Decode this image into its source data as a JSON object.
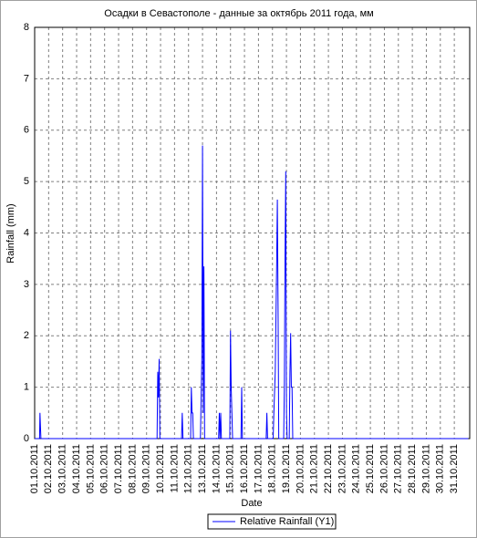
{
  "chart_data": {
    "type": "line",
    "title": "Осадки в Севастополе - данные за октябрь 2011 года, мм",
    "x_label": "Date",
    "y_label": "Rainfall (mm)",
    "x": [
      1,
      1.35,
      1.38,
      1.42,
      1.45,
      9.75,
      9.8,
      9.85,
      9.9,
      9.95,
      11.5,
      11.55,
      11.6,
      12.15,
      12.2,
      12.25,
      12.3,
      12.35,
      12.85,
      12.9,
      12.95,
      13.0,
      13.05,
      13.1,
      13.15,
      14.15,
      14.2,
      14.25,
      14.3,
      14.35,
      14.95,
      15.0,
      15.05,
      15.1,
      15.15,
      15.75,
      15.8,
      15.85,
      17.55,
      17.6,
      17.65,
      18.05,
      18.1,
      18.2,
      18.3,
      18.35,
      18.4,
      18.45,
      18.8,
      18.85,
      18.9,
      18.95,
      19.0,
      19.05,
      19.2,
      19.25,
      19.3,
      19.35,
      19.4,
      19.45,
      32
    ],
    "series": [
      {
        "name": "Relative Rainfall (Y1)",
        "color": "#0000ff",
        "values": [
          0,
          0,
          0.5,
          0.2,
          0,
          0,
          1.3,
          0.8,
          1.55,
          0,
          0,
          0.5,
          0,
          0,
          1.0,
          0.5,
          0.5,
          0,
          0,
          0.8,
          1.55,
          5.7,
          0.5,
          3.35,
          0,
          0,
          0.5,
          0,
          0.5,
          0,
          0,
          2.1,
          1.0,
          0.5,
          0,
          0,
          1.0,
          0,
          0,
          0.5,
          0,
          0,
          0.5,
          1.3,
          3.4,
          4.65,
          2.6,
          0,
          0,
          1.0,
          3.6,
          5.2,
          0.5,
          0,
          0,
          1.3,
          2.05,
          1.0,
          1.0,
          0,
          0
        ]
      }
    ],
    "xlim": [
      1,
      32.1
    ],
    "ylim": [
      0,
      8
    ],
    "yticks": [
      0,
      1,
      2,
      3,
      4,
      5,
      6,
      7,
      8
    ],
    "xticks": [
      {
        "value": 1,
        "label": "01.10.2011"
      },
      {
        "value": 2,
        "label": "02.10.2011"
      },
      {
        "value": 3,
        "label": "03.10.2011"
      },
      {
        "value": 4,
        "label": "04.10.2011"
      },
      {
        "value": 5,
        "label": "05.10.2011"
      },
      {
        "value": 6,
        "label": "06.10.2011"
      },
      {
        "value": 7,
        "label": "07.10.2011"
      },
      {
        "value": 8,
        "label": "08.10.2011"
      },
      {
        "value": 9,
        "label": "09.10.2011"
      },
      {
        "value": 10,
        "label": "10.10.2011"
      },
      {
        "value": 11,
        "label": "11.10.2011"
      },
      {
        "value": 12,
        "label": "12.10.2011"
      },
      {
        "value": 13,
        "label": "13.10.2011"
      },
      {
        "value": 14,
        "label": "14.10.2011"
      },
      {
        "value": 15,
        "label": "15.10.2011"
      },
      {
        "value": 16,
        "label": "16.10.2011"
      },
      {
        "value": 17,
        "label": "17.10.2011"
      },
      {
        "value": 18,
        "label": "18.10.2011"
      },
      {
        "value": 19,
        "label": "19.10.2011"
      },
      {
        "value": 20,
        "label": "20.10.2011"
      },
      {
        "value": 21,
        "label": "21.10.2011"
      },
      {
        "value": 22,
        "label": "22.10.2011"
      },
      {
        "value": 23,
        "label": "23.10.2011"
      },
      {
        "value": 24,
        "label": "24.10.2011"
      },
      {
        "value": 25,
        "label": "25.10.2011"
      },
      {
        "value": 26,
        "label": "26.10.2011"
      },
      {
        "value": 27,
        "label": "27.10.2011"
      },
      {
        "value": 28,
        "label": "28.10.2011"
      },
      {
        "value": 29,
        "label": "29.10.2011"
      },
      {
        "value": 30,
        "label": "30.10.2011"
      },
      {
        "value": 31,
        "label": "31.10.2011"
      }
    ],
    "grid": true,
    "legend_position": "bottom"
  }
}
